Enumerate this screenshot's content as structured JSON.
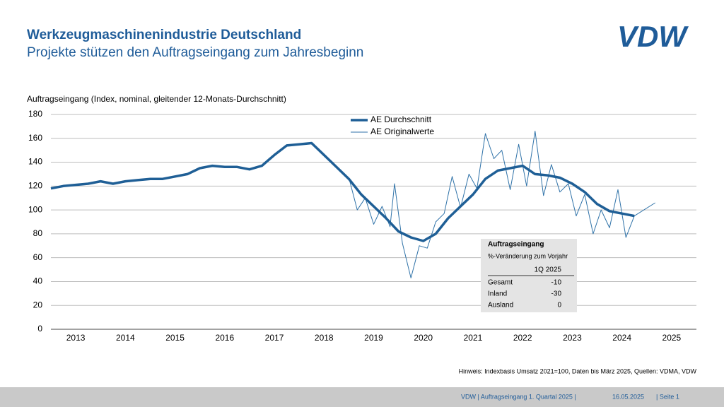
{
  "header": {
    "title": "Werkzeugmaschinenindustrie Deutschland",
    "subtitle": "Projekte stützen den Auftragseingang zum Jahresbeginn",
    "logo": "VDW"
  },
  "chart_data": {
    "type": "line",
    "y_label": "Auftragseingang (Index, nominal, gleitender 12-Monats-Durchschnitt)",
    "xlim": [
      2013,
      2026
    ],
    "xticks": [
      {
        "value": 2013.5,
        "label": "2013"
      },
      {
        "value": 2014.5,
        "label": "2014"
      },
      {
        "value": 2015.5,
        "label": "2015"
      },
      {
        "value": 2016.5,
        "label": "2016"
      },
      {
        "value": 2017.5,
        "label": "2017"
      },
      {
        "value": 2018.5,
        "label": "2018"
      },
      {
        "value": 2019.5,
        "label": "2019"
      },
      {
        "value": 2020.5,
        "label": "2020"
      },
      {
        "value": 2021.5,
        "label": "2021"
      },
      {
        "value": 2022.5,
        "label": "2022"
      },
      {
        "value": 2023.5,
        "label": "2023"
      },
      {
        "value": 2024.5,
        "label": "2024"
      },
      {
        "value": 2025.5,
        "label": "2025"
      }
    ],
    "ylim": [
      0,
      180
    ],
    "yticks": [
      0,
      20,
      40,
      60,
      80,
      100,
      120,
      140,
      160,
      180
    ],
    "grid": true,
    "legend": "top",
    "series": [
      {
        "name": "AE Durchschnitt",
        "color": "#1f5f96",
        "width": 3.5,
        "x": [
          2013.0,
          2013.25,
          2013.5,
          2013.75,
          2014.0,
          2014.25,
          2014.5,
          2014.75,
          2015.0,
          2015.25,
          2015.5,
          2015.75,
          2016.0,
          2016.25,
          2016.5,
          2016.75,
          2017.0,
          2017.25,
          2017.5,
          2017.75,
          2018.0,
          2018.25,
          2018.5,
          2018.75,
          2019.0,
          2019.25,
          2019.5,
          2019.75,
          2020.0,
          2020.25,
          2020.5,
          2020.75,
          2021.0,
          2021.25,
          2021.5,
          2021.75,
          2022.0,
          2022.25,
          2022.5,
          2022.75,
          2023.0,
          2023.25,
          2023.5,
          2023.75,
          2024.0,
          2024.25,
          2024.5,
          2024.75
        ],
        "values": [
          118,
          120,
          121,
          122,
          124,
          122,
          124,
          125,
          126,
          126,
          128,
          130,
          135,
          137,
          136,
          136,
          134,
          137,
          146,
          154,
          155,
          156,
          146,
          136,
          126,
          113,
          103,
          93,
          82,
          77,
          74,
          80,
          93,
          103,
          113,
          126,
          133,
          135,
          137,
          130,
          129,
          127,
          122,
          115,
          105,
          99,
          97,
          95
        ]
      },
      {
        "name": "AE Originalwerte",
        "color": "#2f72a8",
        "width": 1,
        "x": [
          2019.0,
          2019.17,
          2019.33,
          2019.5,
          2019.67,
          2019.83,
          2019.92,
          2020.08,
          2020.25,
          2020.42,
          2020.58,
          2020.75,
          2020.92,
          2021.08,
          2021.25,
          2021.42,
          2021.58,
          2021.75,
          2021.92,
          2022.08,
          2022.25,
          2022.42,
          2022.58,
          2022.75,
          2022.92,
          2023.08,
          2023.25,
          2023.42,
          2023.58,
          2023.75,
          2023.92,
          2024.08,
          2024.25,
          2024.42,
          2024.58,
          2024.75,
          2025.17
        ],
        "values": [
          127,
          100,
          110,
          88,
          103,
          86,
          122,
          72,
          43,
          70,
          68,
          90,
          97,
          128,
          102,
          130,
          118,
          164,
          143,
          150,
          117,
          155,
          120,
          166,
          112,
          138,
          115,
          122,
          95,
          113,
          80,
          100,
          85,
          117,
          77,
          95,
          106
        ]
      }
    ]
  },
  "inset_table": {
    "title": "Auftragseingang",
    "subtitle": "%-Veränderung zum Vorjahr",
    "column": "1Q 2025",
    "rows": [
      [
        "Gesamt",
        "-10"
      ],
      [
        "Inland",
        "-30"
      ],
      [
        "Ausland",
        "0"
      ]
    ]
  },
  "note": "Hinweis: Indexbasis Umsatz 2021=100, Daten bis März 2025, Quellen: VDMA, VDW",
  "footer": [
    "VDW  | Auftragseingang 1. Quartal 2025 |",
    "16.05.2025",
    "| Seite 1"
  ]
}
